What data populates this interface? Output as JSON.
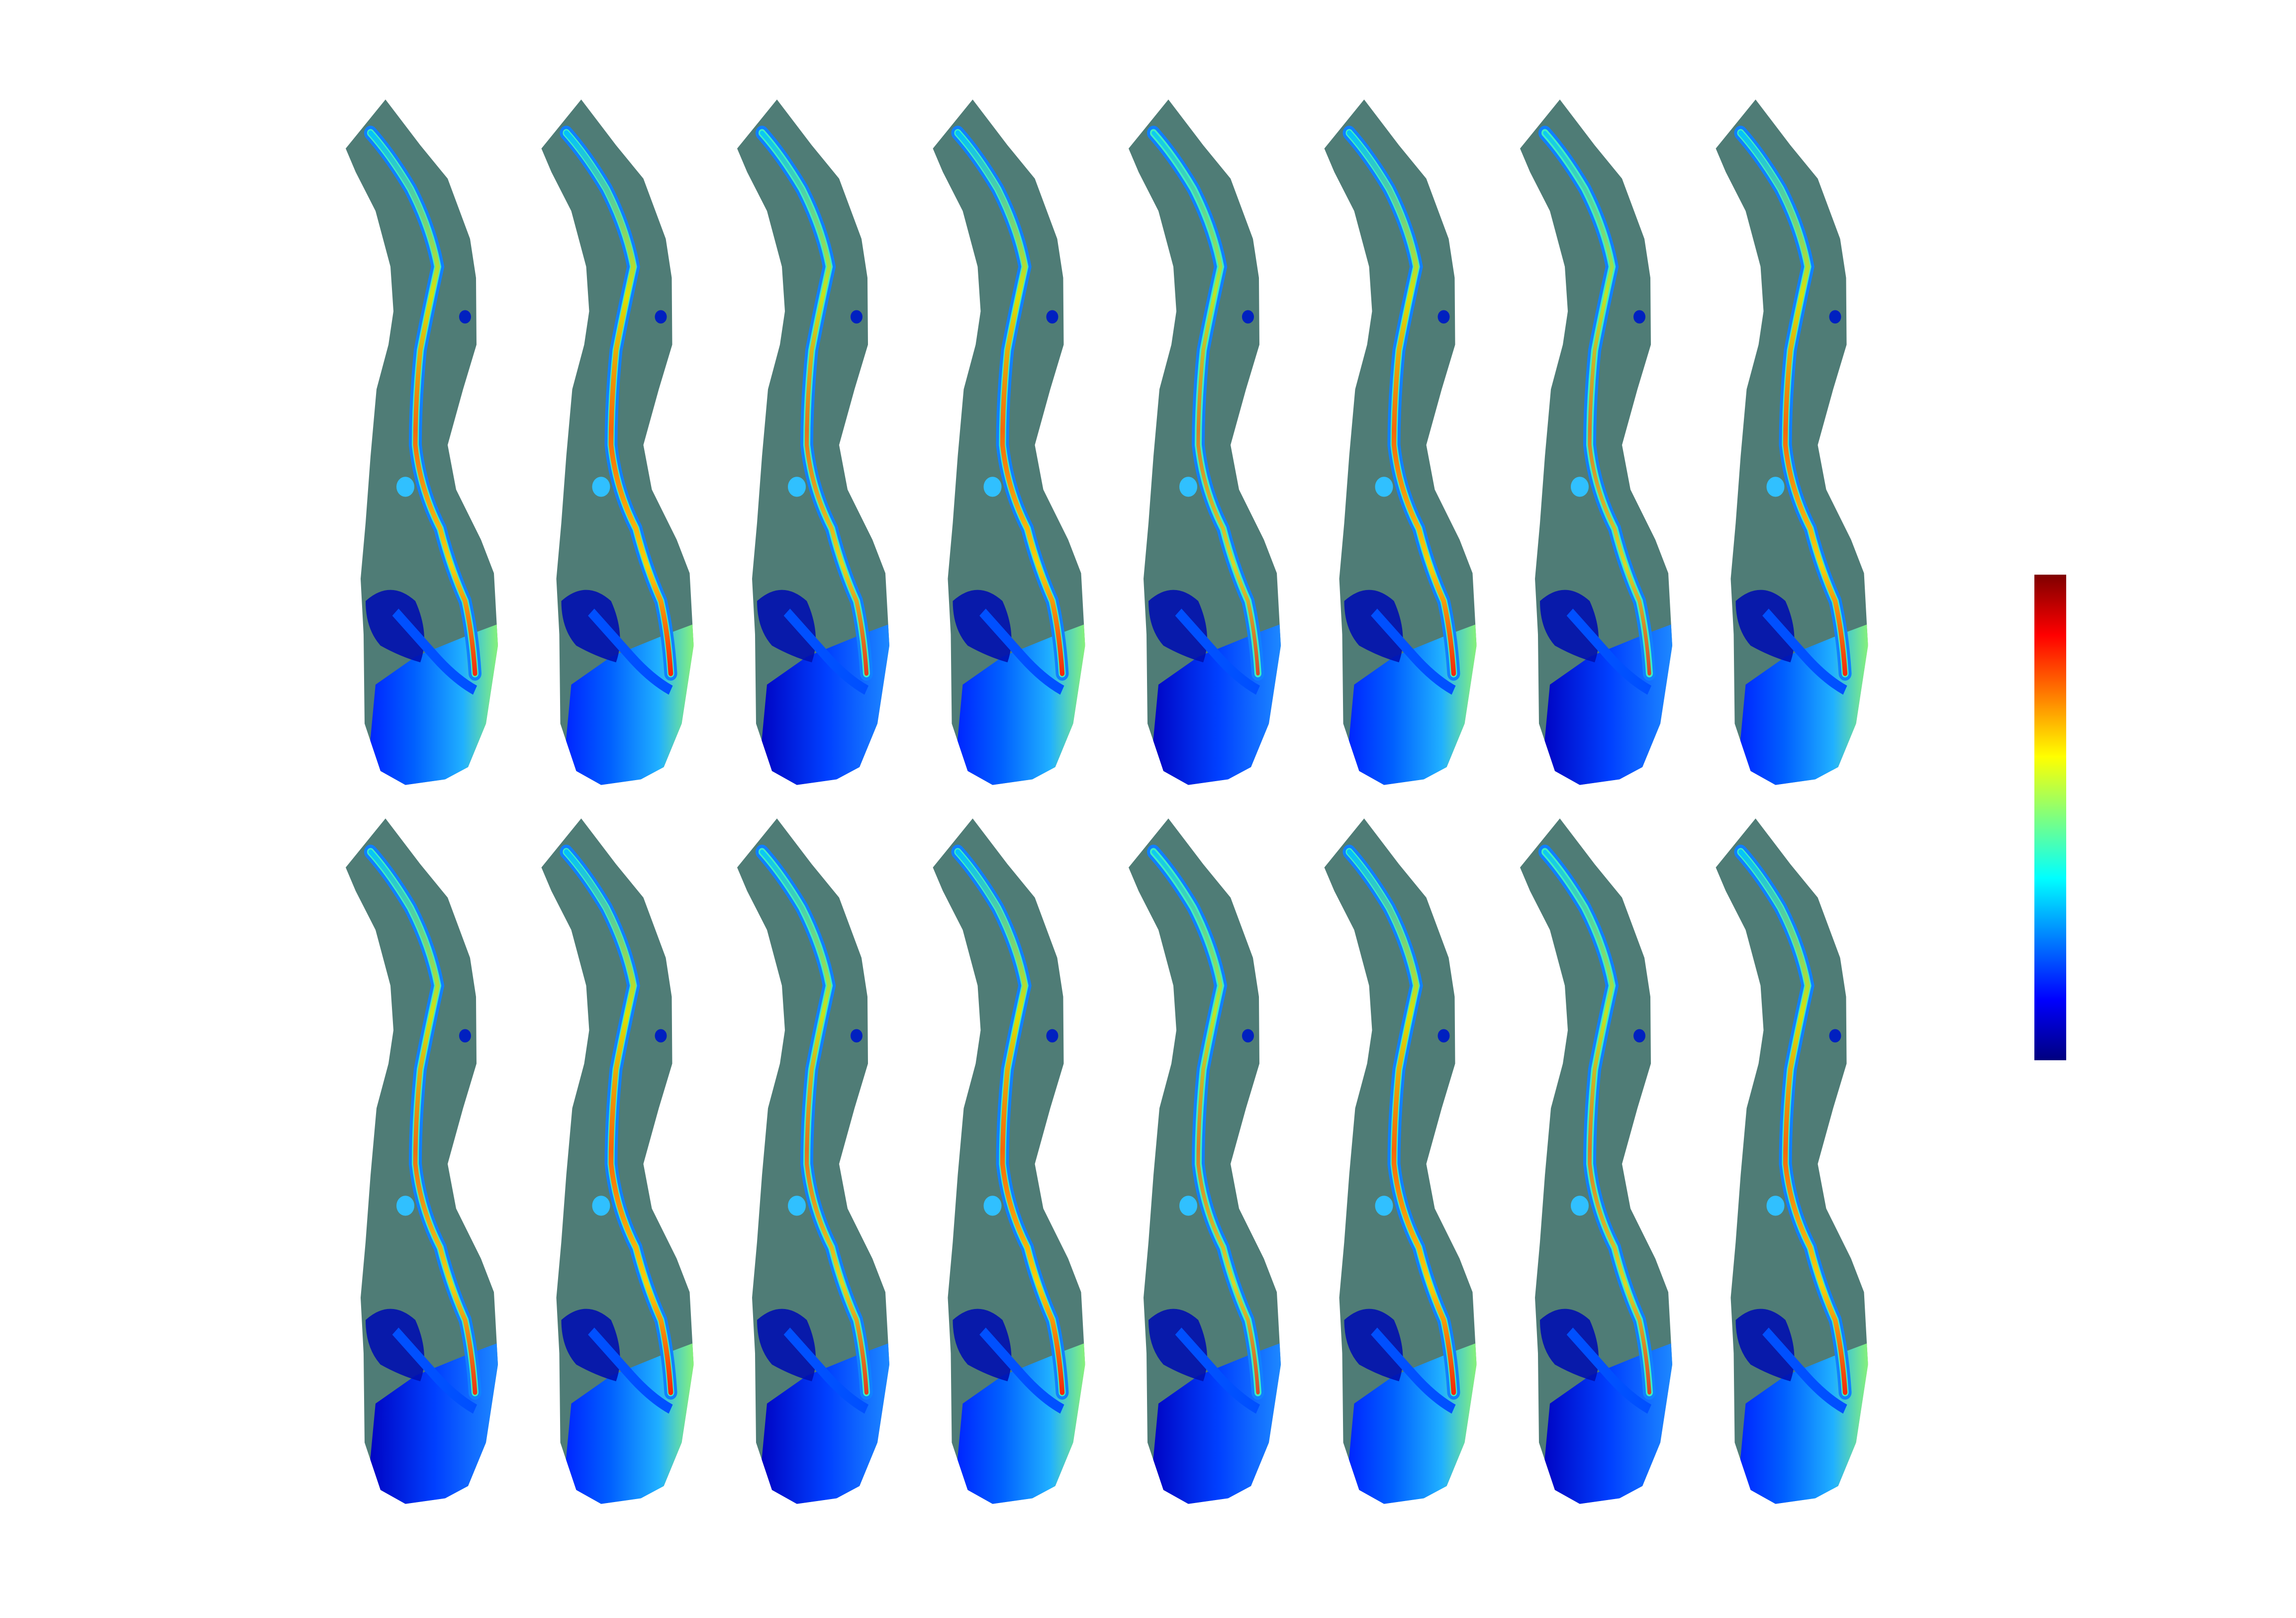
{
  "figure": {
    "rows": 2,
    "columns": 8,
    "land_color": "#4f7c76",
    "background_color": "#ffffff"
  },
  "panels": [
    {
      "row": 1,
      "col": 1,
      "intensity": 0.85
    },
    {
      "row": 1,
      "col": 2,
      "intensity": 0.95
    },
    {
      "row": 1,
      "col": 3,
      "intensity": 0.7
    },
    {
      "row": 1,
      "col": 4,
      "intensity": 0.9
    },
    {
      "row": 1,
      "col": 5,
      "intensity": 0.55
    },
    {
      "row": 1,
      "col": 6,
      "intensity": 0.9
    },
    {
      "row": 1,
      "col": 7,
      "intensity": 0.55
    },
    {
      "row": 1,
      "col": 8,
      "intensity": 0.88
    },
    {
      "row": 2,
      "col": 1,
      "intensity": 0.8
    },
    {
      "row": 2,
      "col": 2,
      "intensity": 0.95
    },
    {
      "row": 2,
      "col": 3,
      "intensity": 0.7
    },
    {
      "row": 2,
      "col": 4,
      "intensity": 0.92
    },
    {
      "row": 2,
      "col": 5,
      "intensity": 0.55
    },
    {
      "row": 2,
      "col": 6,
      "intensity": 0.92
    },
    {
      "row": 2,
      "col": 7,
      "intensity": 0.6
    },
    {
      "row": 2,
      "col": 8,
      "intensity": 0.88
    }
  ],
  "colorbar": {
    "colormap": "jet",
    "stops": [
      "#00007f",
      "#0000ff",
      "#007fff",
      "#00ffff",
      "#7fff7f",
      "#ffff00",
      "#ff7f00",
      "#ff0000",
      "#7f0000"
    ],
    "tick_labels": []
  }
}
